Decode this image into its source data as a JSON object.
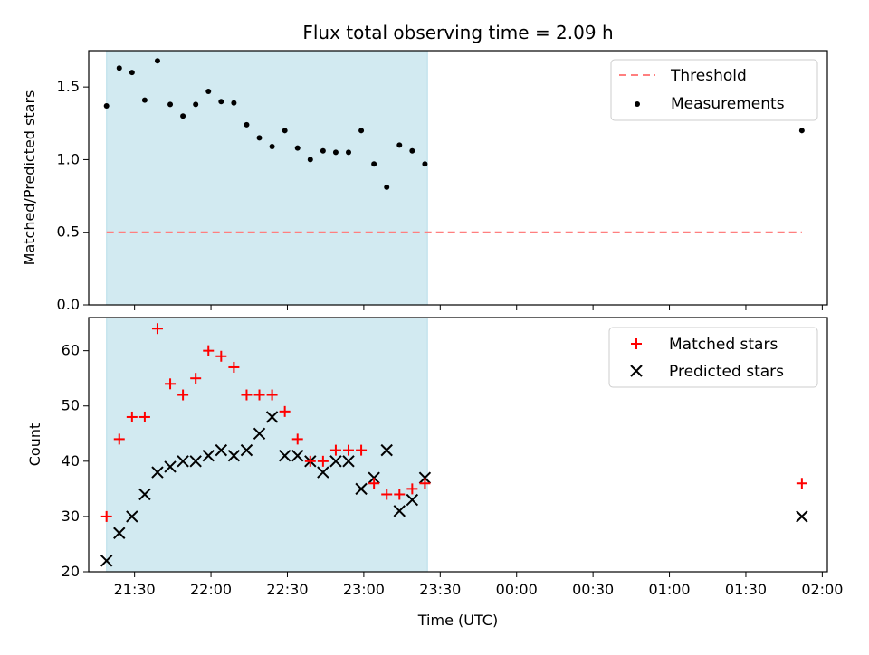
{
  "figure": {
    "title": "Flux total observing time = 2.09 h",
    "xlabel": "Time (UTC)"
  },
  "colors": {
    "shade": "#add8e6",
    "threshold": "#ff7f7f",
    "matched": "#ff0000",
    "predicted": "#000000",
    "measurement": "#000000"
  },
  "chart_data": [
    {
      "type": "scatter",
      "ylabel": "Matched/Predicted stars",
      "ylim": [
        0,
        1.75
      ],
      "yticks": [
        0.0,
        0.5,
        1.0,
        1.5
      ],
      "ytick_labels": [
        "0.0",
        "0.5",
        "1.0",
        "1.5"
      ],
      "shaded_interval": [
        "21:19",
        "23:25"
      ],
      "legend_placement": "top-right",
      "series": [
        {
          "name": "Threshold",
          "kind": "dashed-line",
          "x": [
            "21:19",
            "01:52"
          ],
          "y": [
            0.5,
            0.5
          ]
        },
        {
          "name": "Measurements",
          "kind": "points",
          "x": [
            "21:19",
            "21:24",
            "21:29",
            "21:34",
            "21:39",
            "21:44",
            "21:49",
            "21:54",
            "21:59",
            "22:04",
            "22:09",
            "22:14",
            "22:19",
            "22:24",
            "22:29",
            "22:34",
            "22:39",
            "22:44",
            "22:49",
            "22:54",
            "22:59",
            "23:04",
            "23:09",
            "23:14",
            "23:19",
            "23:24",
            "01:52"
          ],
          "y": [
            1.37,
            1.63,
            1.6,
            1.41,
            1.68,
            1.38,
            1.3,
            1.38,
            1.47,
            1.4,
            1.39,
            1.24,
            1.15,
            1.09,
            1.2,
            1.08,
            1.0,
            1.06,
            1.05,
            1.05,
            1.2,
            0.97,
            0.81,
            1.1,
            1.06,
            0.97,
            1.2
          ]
        }
      ]
    },
    {
      "type": "scatter",
      "ylabel": "Count",
      "ylim": [
        20,
        66
      ],
      "yticks": [
        20,
        30,
        40,
        50,
        60
      ],
      "ytick_labels": [
        "20",
        "30",
        "40",
        "50",
        "60"
      ],
      "xlim": [
        "21:12",
        "02:02"
      ],
      "xticks": [
        "21:30",
        "22:00",
        "22:30",
        "23:00",
        "23:30",
        "00:00",
        "00:30",
        "01:00",
        "01:30",
        "02:00"
      ],
      "xtick_labels": [
        "21:30",
        "22:00",
        "22:30",
        "23:00",
        "23:30",
        "00:00",
        "00:30",
        "01:00",
        "01:30",
        "02:00"
      ],
      "shaded_interval": [
        "21:19",
        "23:25"
      ],
      "legend_placement": "top-right",
      "series": [
        {
          "name": "Matched stars",
          "marker": "plus",
          "x": [
            "21:19",
            "21:24",
            "21:29",
            "21:34",
            "21:39",
            "21:44",
            "21:49",
            "21:54",
            "21:59",
            "22:04",
            "22:09",
            "22:14",
            "22:19",
            "22:24",
            "22:29",
            "22:34",
            "22:39",
            "22:44",
            "22:49",
            "22:54",
            "22:59",
            "23:04",
            "23:09",
            "23:14",
            "23:19",
            "23:24",
            "01:52"
          ],
          "y": [
            30,
            44,
            48,
            48,
            64,
            54,
            52,
            55,
            60,
            59,
            57,
            52,
            52,
            52,
            49,
            44,
            40,
            40,
            42,
            42,
            42,
            36,
            34,
            34,
            35,
            36,
            36
          ]
        },
        {
          "name": "Predicted stars",
          "marker": "x",
          "x": [
            "21:19",
            "21:24",
            "21:29",
            "21:34",
            "21:39",
            "21:44",
            "21:49",
            "21:54",
            "21:59",
            "22:04",
            "22:09",
            "22:14",
            "22:19",
            "22:24",
            "22:29",
            "22:34",
            "22:39",
            "22:44",
            "22:49",
            "22:54",
            "22:59",
            "23:04",
            "23:09",
            "23:14",
            "23:19",
            "23:24",
            "01:52"
          ],
          "y": [
            22,
            27,
            30,
            34,
            38,
            39,
            40,
            40,
            41,
            42,
            41,
            42,
            45,
            48,
            41,
            41,
            40,
            38,
            40,
            40,
            35,
            37,
            42,
            31,
            33,
            37,
            30
          ]
        }
      ]
    }
  ]
}
